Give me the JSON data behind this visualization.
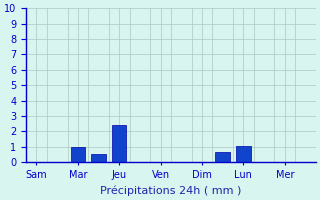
{
  "xlabel": "Précipitations 24h ( mm )",
  "ylim": [
    0,
    10
  ],
  "yticks": [
    0,
    1,
    2,
    3,
    4,
    5,
    6,
    7,
    8,
    9,
    10
  ],
  "day_labels": [
    "Sam",
    "Mar",
    "Jeu",
    "Ven",
    "Dim",
    "Lun",
    "Mer"
  ],
  "n_days": 7,
  "bar_positions": [
    2,
    3,
    4,
    9,
    10
  ],
  "bar_values": [
    1.0,
    0.55,
    2.4,
    0.65,
    1.05
  ],
  "n_cols": 14,
  "bar_color": "#1144cc",
  "bar_edge_color": "#0000aa",
  "background_color": "#d8f5f0",
  "grid_color": "#aec8c0",
  "axis_color": "#0000cc",
  "label_color": "#2222aa",
  "xlabel_fontsize": 8,
  "tick_fontsize": 7
}
